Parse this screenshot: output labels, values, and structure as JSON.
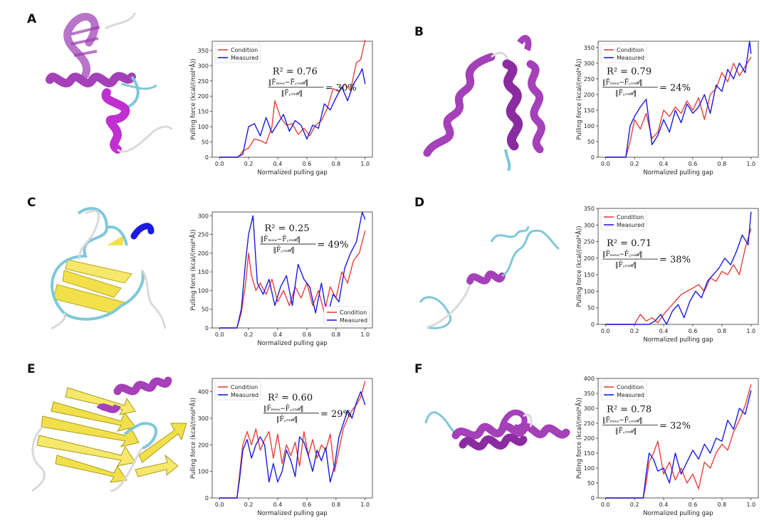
{
  "colors": {
    "condition": "#e8403a",
    "measured": "#1a1ae0",
    "helix": "#a440b8",
    "helix_dark": "#8a2ca0",
    "coil": "#7ec8d8",
    "strand": "#f2e04a",
    "loop": "#d9d9d9"
  },
  "chart_data": [
    {
      "panel": "A",
      "type": "line",
      "xlabel": "Normalized pulling gap",
      "ylabel": "Pulling force (kcal/(mol*Å))",
      "xlim": [
        -0.05,
        1.05
      ],
      "ylim": [
        0,
        380
      ],
      "xticks": [
        "0.0",
        "0.2",
        "0.4",
        "0.6",
        "0.8",
        "1.0"
      ],
      "yticks": [
        "0",
        "50",
        "100",
        "150",
        "200",
        "250",
        "300",
        "350"
      ],
      "legend": {
        "position": "top-left",
        "entries": [
          "Condition",
          "Measured"
        ]
      },
      "r2_text": "R² = 0.76",
      "ratio_value": "= 30%",
      "series": [
        {
          "name": "Condition",
          "x": [
            0.0,
            0.13,
            0.16,
            0.2,
            0.24,
            0.28,
            0.32,
            0.36,
            0.38,
            0.42,
            0.46,
            0.5,
            0.54,
            0.58,
            0.62,
            0.66,
            0.7,
            0.74,
            0.78,
            0.82,
            0.86,
            0.9,
            0.94,
            0.97,
            1.0
          ],
          "y": [
            0,
            0,
            20,
            30,
            60,
            55,
            45,
            100,
            185,
            130,
            105,
            110,
            75,
            95,
            70,
            105,
            120,
            160,
            225,
            215,
            240,
            220,
            310,
            320,
            385
          ]
        },
        {
          "name": "Measured",
          "x": [
            0.0,
            0.12,
            0.16,
            0.2,
            0.24,
            0.28,
            0.32,
            0.36,
            0.4,
            0.44,
            0.48,
            0.52,
            0.56,
            0.6,
            0.64,
            0.68,
            0.72,
            0.76,
            0.8,
            0.84,
            0.88,
            0.92,
            0.96,
            0.98,
            1.0
          ],
          "y": [
            0,
            0,
            10,
            100,
            110,
            70,
            130,
            80,
            110,
            140,
            85,
            120,
            105,
            60,
            105,
            95,
            175,
            155,
            195,
            230,
            185,
            240,
            270,
            290,
            240
          ]
        }
      ]
    },
    {
      "panel": "B",
      "type": "line",
      "xlabel": "Normalized pulling gap",
      "ylabel": "Pulling force (kcal/(mol*Å))",
      "xlim": [
        -0.05,
        1.05
      ],
      "ylim": [
        0,
        370
      ],
      "xticks": [
        "0.0",
        "0.2",
        "0.4",
        "0.6",
        "0.8",
        "1.0"
      ],
      "yticks": [
        "0",
        "50",
        "100",
        "150",
        "200",
        "250",
        "300",
        "350"
      ],
      "legend": {
        "position": "top-left",
        "entries": [
          "Condition",
          "Measured"
        ]
      },
      "r2_text": "R² = 0.79",
      "ratio_value": "= 24%",
      "series": [
        {
          "name": "Condition",
          "x": [
            0.0,
            0.14,
            0.17,
            0.2,
            0.24,
            0.28,
            0.32,
            0.36,
            0.4,
            0.44,
            0.48,
            0.52,
            0.56,
            0.6,
            0.64,
            0.68,
            0.72,
            0.76,
            0.8,
            0.84,
            0.88,
            0.92,
            0.96,
            1.0
          ],
          "y": [
            0,
            0,
            50,
            120,
            90,
            140,
            60,
            80,
            150,
            130,
            160,
            140,
            180,
            150,
            190,
            120,
            200,
            220,
            270,
            240,
            300,
            260,
            290,
            320
          ]
        },
        {
          "name": "Measured",
          "x": [
            0.0,
            0.14,
            0.17,
            0.2,
            0.24,
            0.28,
            0.32,
            0.36,
            0.4,
            0.44,
            0.48,
            0.52,
            0.56,
            0.6,
            0.64,
            0.68,
            0.72,
            0.76,
            0.8,
            0.84,
            0.88,
            0.92,
            0.96,
            0.99,
            1.0
          ],
          "y": [
            0,
            0,
            100,
            130,
            160,
            185,
            40,
            70,
            120,
            80,
            150,
            110,
            170,
            140,
            160,
            200,
            140,
            230,
            210,
            280,
            250,
            300,
            270,
            370,
            330
          ]
        }
      ]
    },
    {
      "panel": "C",
      "type": "line",
      "xlabel": "Normalized pulling gap",
      "ylabel": "Pulling force (kcal/(mol*Å))",
      "xlim": [
        -0.05,
        1.05
      ],
      "ylim": [
        0,
        310
      ],
      "xticks": [
        "0.0",
        "0.2",
        "0.4",
        "0.6",
        "0.8",
        "1.0"
      ],
      "yticks": [
        "0",
        "50",
        "100",
        "150",
        "200",
        "250",
        "300"
      ],
      "legend": {
        "position": "bottom-right",
        "entries": [
          "Condition",
          "Measured"
        ]
      },
      "r2_text": "R² = 0.25",
      "ratio_value": "= 49%",
      "series": [
        {
          "name": "Condition",
          "x": [
            0.0,
            0.12,
            0.15,
            0.18,
            0.2,
            0.22,
            0.25,
            0.28,
            0.32,
            0.36,
            0.4,
            0.44,
            0.48,
            0.52,
            0.56,
            0.6,
            0.64,
            0.68,
            0.72,
            0.76,
            0.8,
            0.84,
            0.88,
            0.92,
            0.96,
            1.0
          ],
          "y": [
            0,
            0,
            40,
            120,
            200,
            140,
            100,
            120,
            90,
            130,
            70,
            100,
            60,
            110,
            80,
            120,
            60,
            100,
            40,
            110,
            80,
            150,
            120,
            180,
            200,
            260
          ]
        },
        {
          "name": "Measured",
          "x": [
            0.0,
            0.12,
            0.15,
            0.18,
            0.2,
            0.23,
            0.26,
            0.3,
            0.34,
            0.38,
            0.42,
            0.46,
            0.5,
            0.54,
            0.58,
            0.62,
            0.66,
            0.7,
            0.74,
            0.78,
            0.82,
            0.86,
            0.9,
            0.94,
            0.98,
            1.0
          ],
          "y": [
            0,
            0,
            50,
            180,
            250,
            300,
            120,
            90,
            130,
            60,
            110,
            140,
            60,
            170,
            130,
            110,
            40,
            120,
            30,
            90,
            70,
            160,
            200,
            230,
            310,
            290
          ]
        }
      ]
    },
    {
      "panel": "D",
      "type": "line",
      "xlabel": "Normalized pulling gap",
      "ylabel": "Pulling force (kcal/(mol*Å))",
      "xlim": [
        -0.05,
        1.05
      ],
      "ylim": [
        0,
        350
      ],
      "xticks": [
        "0.0",
        "0.2",
        "0.4",
        "0.6",
        "0.8",
        "1.0"
      ],
      "yticks": [
        "0",
        "50",
        "100",
        "150",
        "200",
        "250",
        "300",
        "350"
      ],
      "legend": {
        "position": "top-left",
        "entries": [
          "Condition",
          "Measured"
        ]
      },
      "r2_text": "R² = 0.71",
      "ratio_value": "= 38%",
      "series": [
        {
          "name": "Condition",
          "x": [
            0.0,
            0.2,
            0.24,
            0.28,
            0.32,
            0.36,
            0.4,
            0.44,
            0.48,
            0.52,
            0.56,
            0.6,
            0.64,
            0.68,
            0.72,
            0.76,
            0.8,
            0.84,
            0.88,
            0.92,
            0.96,
            1.0
          ],
          "y": [
            0,
            0,
            30,
            10,
            20,
            5,
            30,
            50,
            70,
            90,
            100,
            110,
            120,
            100,
            140,
            130,
            160,
            150,
            180,
            150,
            230,
            290
          ]
        },
        {
          "name": "Measured",
          "x": [
            0.0,
            0.3,
            0.34,
            0.38,
            0.42,
            0.46,
            0.5,
            0.54,
            0.58,
            0.62,
            0.66,
            0.7,
            0.74,
            0.78,
            0.82,
            0.86,
            0.9,
            0.94,
            0.98,
            1.0
          ],
          "y": [
            0,
            0,
            10,
            30,
            0,
            40,
            60,
            20,
            70,
            100,
            80,
            130,
            150,
            170,
            200,
            180,
            220,
            270,
            240,
            340
          ]
        }
      ]
    },
    {
      "panel": "E",
      "type": "line",
      "xlabel": "Normalized pulling gap",
      "ylabel": "Pulling force (kcal/(mol*Å))",
      "xlim": [
        -0.05,
        1.05
      ],
      "ylim": [
        0,
        450
      ],
      "xticks": [
        "0.0",
        "0.2",
        "0.4",
        "0.6",
        "0.8",
        "1.0"
      ],
      "yticks": [
        "0",
        "100",
        "200",
        "300",
        "400"
      ],
      "legend": {
        "position": "top-left",
        "entries": [
          "Condition",
          "Measured"
        ]
      },
      "r2_text": "R² = 0.60",
      "ratio_value": "= 29%",
      "series": [
        {
          "name": "Condition",
          "x": [
            0.0,
            0.12,
            0.14,
            0.16,
            0.19,
            0.22,
            0.25,
            0.28,
            0.31,
            0.34,
            0.37,
            0.4,
            0.43,
            0.46,
            0.49,
            0.52,
            0.55,
            0.58,
            0.61,
            0.64,
            0.67,
            0.7,
            0.73,
            0.76,
            0.79,
            0.82,
            0.85,
            0.88,
            0.91,
            0.94,
            0.97,
            1.0
          ],
          "y": [
            0,
            0,
            100,
            200,
            250,
            200,
            260,
            180,
            220,
            250,
            150,
            240,
            130,
            200,
            160,
            210,
            120,
            250,
            160,
            220,
            150,
            200,
            180,
            240,
            100,
            180,
            260,
            300,
            330,
            350,
            380,
            440
          ]
        },
        {
          "name": "Measured",
          "x": [
            0.0,
            0.12,
            0.14,
            0.16,
            0.19,
            0.22,
            0.25,
            0.28,
            0.31,
            0.34,
            0.37,
            0.4,
            0.43,
            0.46,
            0.49,
            0.52,
            0.55,
            0.58,
            0.61,
            0.64,
            0.67,
            0.7,
            0.73,
            0.76,
            0.79,
            0.82,
            0.85,
            0.88,
            0.91,
            0.94,
            0.97,
            1.0
          ],
          "y": [
            0,
            0,
            80,
            180,
            220,
            150,
            200,
            230,
            200,
            60,
            130,
            60,
            100,
            180,
            140,
            80,
            230,
            210,
            160,
            100,
            180,
            140,
            190,
            60,
            120,
            230,
            280,
            330,
            300,
            360,
            400,
            350
          ]
        }
      ]
    },
    {
      "panel": "F",
      "type": "line",
      "xlabel": "Normalized pulling gap",
      "ylabel": "Pulling force (kcal/(mol*Å))",
      "xlim": [
        -0.05,
        1.05
      ],
      "ylim": [
        0,
        400
      ],
      "xticks": [
        "0.0",
        "0.2",
        "0.4",
        "0.6",
        "0.8",
        "1.0"
      ],
      "yticks": [
        "0",
        "50",
        "100",
        "150",
        "200",
        "250",
        "300",
        "350",
        "400"
      ],
      "legend": {
        "position": "top-left",
        "entries": [
          "Condition",
          "Measured"
        ]
      },
      "r2_text": "R² = 0.78",
      "ratio_value": "= 32%",
      "series": [
        {
          "name": "Condition",
          "x": [
            0.0,
            0.26,
            0.28,
            0.3,
            0.33,
            0.36,
            0.4,
            0.44,
            0.48,
            0.52,
            0.56,
            0.6,
            0.64,
            0.68,
            0.72,
            0.76,
            0.8,
            0.84,
            0.88,
            0.92,
            0.96,
            1.0
          ],
          "y": [
            0,
            0,
            50,
            120,
            150,
            190,
            80,
            120,
            60,
            100,
            50,
            80,
            30,
            120,
            100,
            150,
            180,
            160,
            220,
            260,
            310,
            380
          ]
        },
        {
          "name": "Measured",
          "x": [
            0.0,
            0.26,
            0.28,
            0.3,
            0.33,
            0.36,
            0.4,
            0.44,
            0.48,
            0.52,
            0.56,
            0.6,
            0.64,
            0.68,
            0.72,
            0.76,
            0.8,
            0.84,
            0.88,
            0.92,
            0.96,
            1.0
          ],
          "y": [
            0,
            0,
            80,
            150,
            130,
            90,
            100,
            50,
            150,
            80,
            120,
            160,
            130,
            180,
            150,
            200,
            190,
            260,
            230,
            300,
            280,
            360
          ]
        }
      ]
    }
  ]
}
